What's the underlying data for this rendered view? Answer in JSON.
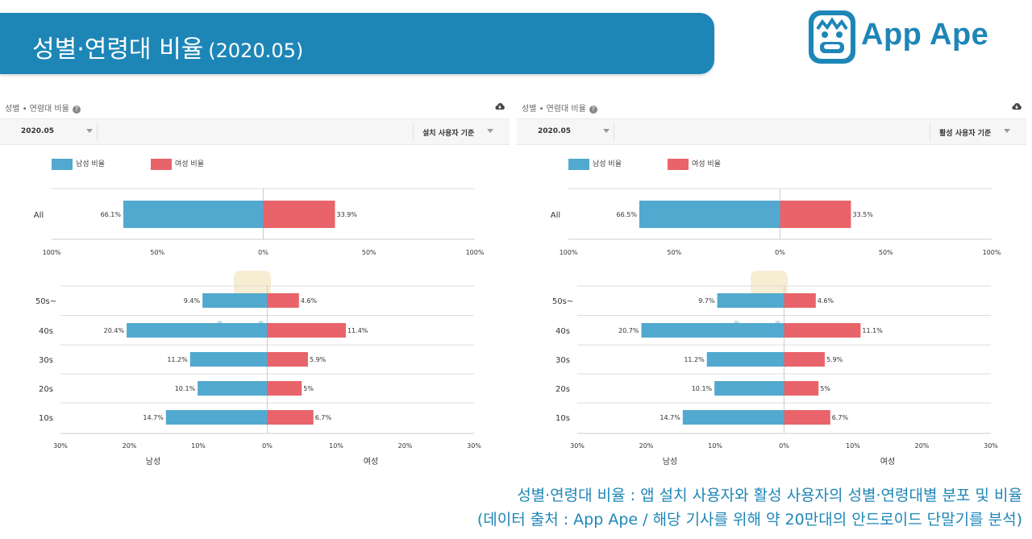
{
  "banner": {
    "title": "성별·연령대 비율",
    "subtitle": "(2020.05)"
  },
  "logo": {
    "text": "App Ape"
  },
  "legend": {
    "male": "남성 비율",
    "female": "여성 비율"
  },
  "colors": {
    "male": "#52a9cf",
    "female": "#e8646a",
    "brand": "#1e86b7"
  },
  "panels": [
    {
      "header": "성별 • 연령대 비율",
      "date_select": "2020.05",
      "basis_select": "설치 사용자 기준",
      "top_label": "All",
      "bottom_left_label": "남성",
      "bottom_right_label": "여성"
    },
    {
      "header": "성별 • 연령대 비율",
      "date_select": "2020.05",
      "basis_select": "활성 사용자 기준",
      "top_label": "All",
      "bottom_left_label": "남성",
      "bottom_right_label": "여성"
    }
  ],
  "chart_data": [
    {
      "type": "bar",
      "orientation": "horizontal-diverging",
      "title": "성별 • 연령대 비율 (설치 사용자 기준) - All",
      "categories": [
        "All"
      ],
      "series": [
        {
          "name": "남성 비율",
          "values": [
            66.1
          ],
          "labels": [
            "66.1%"
          ]
        },
        {
          "name": "여성 비율",
          "values": [
            33.9
          ],
          "labels": [
            "33.9%"
          ]
        }
      ],
      "xlim": [
        -100,
        100
      ],
      "ticks": [
        "100%",
        "50%",
        "0%",
        "50%",
        "100%"
      ]
    },
    {
      "type": "bar",
      "orientation": "horizontal-diverging",
      "title": "성별 • 연령대 비율 (설치 사용자 기준) - 연령대",
      "categories": [
        "50s~",
        "40s",
        "30s",
        "20s",
        "10s"
      ],
      "series": [
        {
          "name": "남성",
          "values": [
            9.4,
            20.4,
            11.2,
            10.1,
            14.7
          ],
          "labels": [
            "9.4%",
            "20.4%",
            "11.2%",
            "10.1%",
            "14.7%"
          ]
        },
        {
          "name": "여성",
          "values": [
            4.6,
            11.4,
            5.9,
            5,
            6.7
          ],
          "labels": [
            "4.6%",
            "11.4%",
            "5.9%",
            "5%",
            "6.7%"
          ]
        }
      ],
      "xlim": [
        -30,
        30
      ],
      "ticks": [
        "30%",
        "20%",
        "10%",
        "0%",
        "10%",
        "20%",
        "30%"
      ]
    },
    {
      "type": "bar",
      "orientation": "horizontal-diverging",
      "title": "성별 • 연령대 비율 (활성 사용자 기준) - All",
      "categories": [
        "All"
      ],
      "series": [
        {
          "name": "남성 비율",
          "values": [
            66.5
          ],
          "labels": [
            "66.5%"
          ]
        },
        {
          "name": "여성 비율",
          "values": [
            33.5
          ],
          "labels": [
            "33.5%"
          ]
        }
      ],
      "xlim": [
        -100,
        100
      ],
      "ticks": [
        "100%",
        "50%",
        "0%",
        "50%",
        "100%"
      ]
    },
    {
      "type": "bar",
      "orientation": "horizontal-diverging",
      "title": "성별 • 연령대 비율 (활성 사용자 기준) - 연령대",
      "categories": [
        "50s~",
        "40s",
        "30s",
        "20s",
        "10s"
      ],
      "series": [
        {
          "name": "남성",
          "values": [
            9.7,
            20.7,
            11.2,
            10.1,
            14.7
          ],
          "labels": [
            "9.7%",
            "20.7%",
            "11.2%",
            "10.1%",
            "14.7%"
          ]
        },
        {
          "name": "여성",
          "values": [
            4.6,
            11.1,
            5.9,
            5,
            6.7
          ],
          "labels": [
            "4.6%",
            "11.1%",
            "5.9%",
            "5%",
            "6.7%"
          ]
        }
      ],
      "xlim": [
        -30,
        30
      ],
      "ticks": [
        "30%",
        "20%",
        "10%",
        "0%",
        "10%",
        "20%",
        "30%"
      ]
    }
  ],
  "caption": {
    "line1": "성별·연령대 비율 : 앱 설치 사용자와 활성 사용자의 성별·연령대별 분포 및 비율",
    "line2": "(데이터 출처 : App Ape / 해당 기사를 위해 약 20만대의 안드로이드 단말기를 분석)"
  }
}
